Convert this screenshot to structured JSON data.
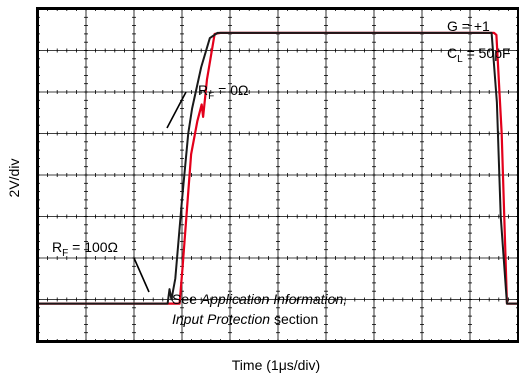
{
  "chart_data": {
    "type": "line",
    "title": "",
    "xlabel": "Time (1μs/div)",
    "ylabel": "2V/div",
    "grid": true,
    "xlim": [
      0,
      10
    ],
    "ylim": [
      -6,
      10
    ],
    "colors": {
      "rf0": "#e3001b",
      "rf100": "#1a1a1a",
      "grid": "#000000",
      "frame": "#000000"
    },
    "conditions": {
      "gain": {
        "main": "G = +1"
      },
      "load": {
        "main": "C",
        "sub": "L",
        "rest": " = 50pF"
      }
    },
    "annotations": {
      "rf0": {
        "main": "R",
        "sub": "F",
        "rest": " = 0Ω"
      },
      "rf100": {
        "main": "R",
        "sub": "F",
        "rest": " = 100Ω"
      },
      "note_before": "See ",
      "note_italic1": "Application Information,",
      "note_italic2": "Input Protection",
      "note_after": " section"
    },
    "series": [
      {
        "key": "rf0",
        "x": [
          0,
          2.95,
          3.01,
          3.19,
          3.32,
          3.41,
          3.44,
          3.52,
          3.68,
          3.8,
          3.9,
          9.5,
          9.55,
          9.66,
          9.77,
          10
        ],
        "y": [
          -4.2,
          -4.2,
          -2.5,
          3.0,
          4.6,
          5.4,
          4.8,
          6.6,
          8.8,
          8.85,
          8.85,
          8.85,
          8.75,
          4.0,
          -4.2,
          -4.2
        ]
      },
      {
        "key": "rf100",
        "x": [
          0,
          2.7,
          2.74,
          2.78,
          2.86,
          3.0,
          3.13,
          3.21,
          3.4,
          3.58,
          3.74,
          9.37,
          9.45,
          9.56,
          9.64,
          9.77,
          10
        ],
        "y": [
          -4.2,
          -4.2,
          -3.5,
          -4.0,
          -3.0,
          0.8,
          4.0,
          5.2,
          7.2,
          8.6,
          8.85,
          8.85,
          8.85,
          5.5,
          0.0,
          -4.2,
          -4.2
        ]
      }
    ]
  }
}
